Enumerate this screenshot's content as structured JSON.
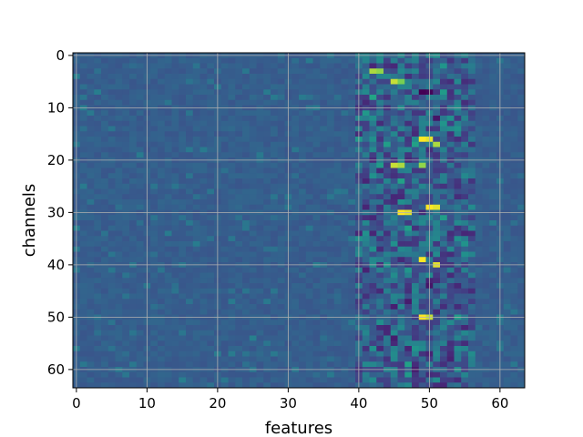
{
  "chart_data": {
    "type": "heatmap",
    "title": "",
    "xlabel": "features",
    "ylabel": "channels",
    "rows": 64,
    "cols": 64,
    "xlim": [
      -0.5,
      63.5
    ],
    "ylim": [
      63.5,
      -0.5
    ],
    "x_ticks": [
      0,
      10,
      20,
      30,
      40,
      50,
      60
    ],
    "y_ticks": [
      0,
      10,
      20,
      30,
      40,
      50,
      60
    ],
    "grid": true,
    "colormap": "viridis",
    "value_range": [
      -1,
      1
    ],
    "background_level": -0.25,
    "active_band_columns": [
      40,
      56
    ],
    "hot_cells": [
      {
        "row": 3,
        "col": 42,
        "value": 0.85
      },
      {
        "row": 3,
        "col": 43,
        "value": 0.8
      },
      {
        "row": 5,
        "col": 45,
        "value": 0.9
      },
      {
        "row": 5,
        "col": 46,
        "value": 0.75
      },
      {
        "row": 16,
        "col": 49,
        "value": 1.0
      },
      {
        "row": 16,
        "col": 50,
        "value": 0.95
      },
      {
        "row": 17,
        "col": 51,
        "value": 0.85
      },
      {
        "row": 21,
        "col": 45,
        "value": 0.9
      },
      {
        "row": 21,
        "col": 46,
        "value": 0.85
      },
      {
        "row": 21,
        "col": 49,
        "value": 0.8
      },
      {
        "row": 29,
        "col": 50,
        "value": 1.0
      },
      {
        "row": 29,
        "col": 51,
        "value": 0.95
      },
      {
        "row": 30,
        "col": 46,
        "value": 1.0
      },
      {
        "row": 30,
        "col": 47,
        "value": 0.95
      },
      {
        "row": 39,
        "col": 49,
        "value": 1.0
      },
      {
        "row": 40,
        "col": 51,
        "value": 0.95
      },
      {
        "row": 50,
        "col": 49,
        "value": 1.0
      },
      {
        "row": 50,
        "col": 50,
        "value": 0.9
      }
    ],
    "dark_cells": [
      {
        "row": 7,
        "col": 49,
        "value": -1.0
      },
      {
        "row": 7,
        "col": 50,
        "value": -0.95
      },
      {
        "row": 12,
        "col": 51,
        "value": -0.85
      },
      {
        "row": 44,
        "col": 50,
        "value": -0.85
      },
      {
        "row": 47,
        "col": 47,
        "value": -0.8
      },
      {
        "row": 54,
        "col": 45,
        "value": -0.8
      },
      {
        "row": 57,
        "col": 50,
        "value": -0.75
      },
      {
        "row": 60,
        "col": 48,
        "value": -0.8
      }
    ]
  }
}
